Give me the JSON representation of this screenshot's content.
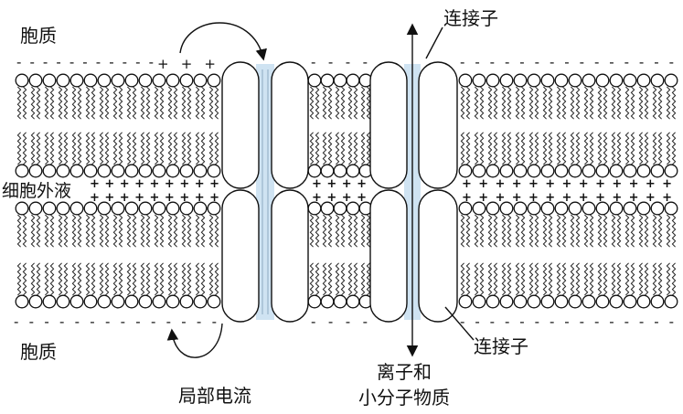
{
  "labels": {
    "cytoplasm_top": "胞质",
    "extracellular_fluid": "细胞外液",
    "cytoplasm_bottom": "胞质",
    "local_current": "局部电流",
    "connexon_top": "连接子",
    "connexon_bottom": "连接子",
    "ions_line1": "离子和",
    "ions_line2": "小分子物质"
  },
  "charges": {
    "top_left_negative": "- - - - - - - - - - -",
    "top_left_positive": "+ + +",
    "top_middle_negative": "- - - -",
    "top_right_negative": "- - - - - - - - - - - - - - -",
    "middle_left_row1": "+ + + + + + + + +",
    "middle_left_row2": "+ + + + + + + + +",
    "middle_center_row1": "+ + + +",
    "middle_center_row2": "+ + + +",
    "middle_right_row1": "+ + + + + + + + + + + + +",
    "middle_right_row2": "+ + + + + + + + + + + + +",
    "bottom_left_negative": "- - - - - - - - - - - - - -",
    "bottom_middle_negative": "- - - -",
    "bottom_right_negative": "- - - - - - - - - - - - - - -"
  },
  "colors": {
    "channel": "#cfe3f2",
    "outline": "#111111"
  }
}
